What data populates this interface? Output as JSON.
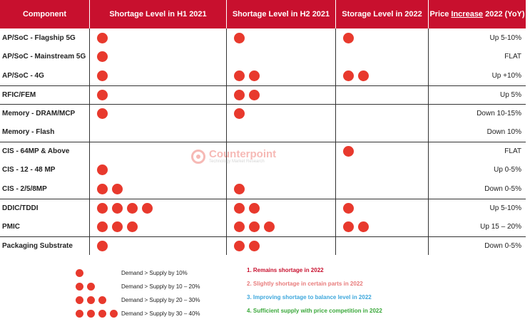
{
  "colors": {
    "header_bg": "#c8102e",
    "dot": "#e8392d",
    "note1": "#c8102e",
    "note2": "#e87b7b",
    "note3": "#3da7dc",
    "note4": "#3aa83a"
  },
  "header": {
    "component": "Component",
    "h1": "Shortage Level in H1 2021",
    "h2": "Shortage Level in H2 2021",
    "storage": "Storage Level in 2022",
    "price_prefix": "Price ",
    "price_underlined": "Increase",
    "price_suffix": " 2022 (YoY)"
  },
  "rows": [
    {
      "component": "AP/SoC - Flagship 5G",
      "h1": 1,
      "h2": 1,
      "s22": 1,
      "price": "Up 5-10%"
    },
    {
      "component": "AP/SoC - Mainstream 5G",
      "h1": 1,
      "h2": 0,
      "s22": 0,
      "price": "FLAT"
    },
    {
      "component": "AP/SoC - 4G",
      "h1": 1,
      "h2": 2,
      "s22": 2,
      "price": "Up +10%"
    },
    {
      "component": "RFIC/FEM",
      "h1": 1,
      "h2": 2,
      "s22": 0,
      "price": "Up 5%"
    },
    {
      "component": "Memory - DRAM/MCP",
      "h1": 1,
      "h2": 1,
      "s22": 0,
      "price": "Down 10-15%"
    },
    {
      "component": "Memory - Flash",
      "h1": 0,
      "h2": 0,
      "s22": 0,
      "price": "Down 10%"
    },
    {
      "component": "CIS - 64MP & Above",
      "h1": 0,
      "h2": 0,
      "s22": 1,
      "price": "FLAT"
    },
    {
      "component": "CIS - 12 - 48 MP",
      "h1": 1,
      "h2": 0,
      "s22": 0,
      "price": "Up 0-5%"
    },
    {
      "component": "CIS - 2/5/8MP",
      "h1": 2,
      "h2": 1,
      "s22": 0,
      "price": "Down 0-5%"
    },
    {
      "component": "DDIC/TDDI",
      "h1": 4,
      "h2": 2,
      "s22": 1,
      "price": "Up 5-10%"
    },
    {
      "component": "PMIC",
      "h1": 3,
      "h2": 3,
      "s22": 2,
      "price": "Up 15 – 20%"
    },
    {
      "component": "Packaging Substrate",
      "h1": 1,
      "h2": 2,
      "s22": 0,
      "price": "Down 0-5%"
    }
  ],
  "watermark": {
    "name": "Counterpoint",
    "tagline": "Technology Market Research"
  },
  "legend": [
    {
      "dots": 1,
      "text": "Demand > Supply by 10%"
    },
    {
      "dots": 2,
      "text": "Demand > Supply by 10 – 20%"
    },
    {
      "dots": 3,
      "text": "Demand > Supply by 20 – 30%"
    },
    {
      "dots": 4,
      "text": "Demand > Supply by 30 – 40%"
    }
  ],
  "notes": [
    "1. Remains shortage in 2022",
    "2. Slightly shortage in certain parts in 2022",
    "3. Improving shortage to balance level in 2022",
    "4. Sufficient supply with price competition in 2022"
  ]
}
